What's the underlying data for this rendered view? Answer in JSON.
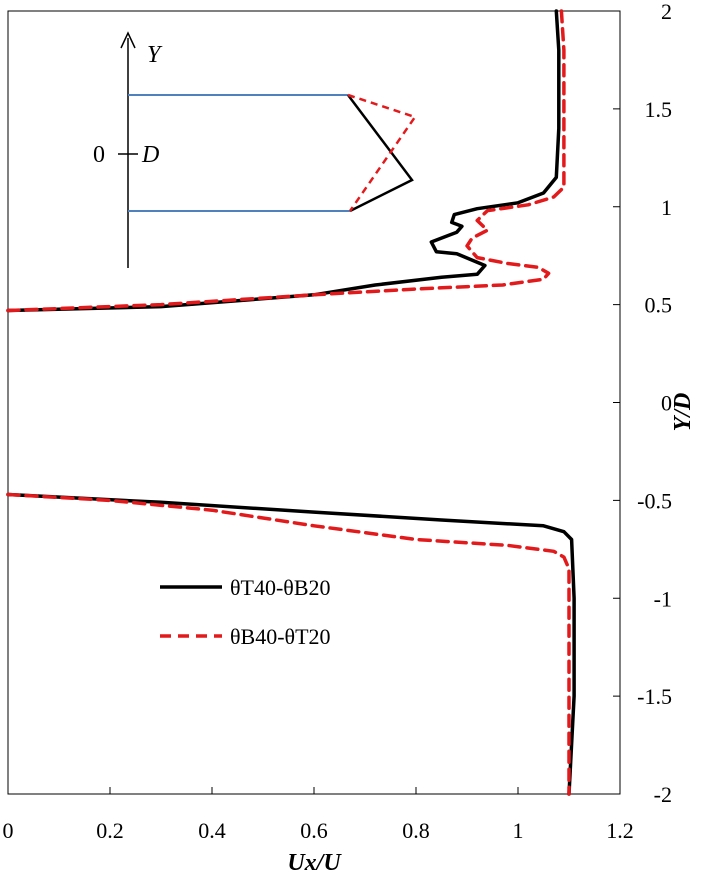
{
  "chart_data": {
    "type": "line",
    "title": "",
    "xlabel": "Ux/U",
    "ylabel": "Y/D",
    "xlim": [
      0,
      1.2
    ],
    "ylim": [
      -2,
      2
    ],
    "x_ticks": [
      "0",
      "0.2",
      "0.4",
      "0.6",
      "0.8",
      "1",
      "1.2"
    ],
    "y_ticks": [
      "-2",
      "-1.5",
      "-1",
      "-0.5",
      "0",
      "0.5",
      "1",
      "1.5",
      "2"
    ],
    "grid": false,
    "legend_position": "lower-left",
    "series": [
      {
        "name": "θT40-θB20",
        "color": "#000000",
        "style": "solid",
        "segments": [
          [
            [
              0,
              0.47
            ],
            [
              0.3,
              0.49
            ],
            [
              0.6,
              0.55
            ],
            [
              0.72,
              0.6
            ],
            [
              0.85,
              0.64
            ],
            [
              0.92,
              0.655
            ],
            [
              0.935,
              0.7
            ],
            [
              0.88,
              0.76
            ],
            [
              0.84,
              0.77
            ],
            [
              0.83,
              0.82
            ],
            [
              0.86,
              0.85
            ],
            [
              0.88,
              0.87
            ],
            [
              0.89,
              0.9
            ],
            [
              0.87,
              0.92
            ],
            [
              0.875,
              0.96
            ],
            [
              0.92,
              0.99
            ],
            [
              1.0,
              1.02
            ],
            [
              1.05,
              1.07
            ],
            [
              1.075,
              1.15
            ],
            [
              1.08,
              1.4
            ],
            [
              1.08,
              1.8
            ],
            [
              1.075,
              2.0
            ]
          ],
          [
            [
              0,
              -0.47
            ],
            [
              0.3,
              -0.51
            ],
            [
              0.6,
              -0.56
            ],
            [
              0.85,
              -0.6
            ],
            [
              1.05,
              -0.63
            ],
            [
              1.09,
              -0.66
            ],
            [
              1.105,
              -0.7
            ],
            [
              1.11,
              -1.0
            ],
            [
              1.11,
              -1.5
            ],
            [
              1.1,
              -2.0
            ]
          ]
        ]
      },
      {
        "name": "θB40-θT20",
        "color": "#e31a1c",
        "style": "dashed",
        "segments": [
          [
            [
              0,
              0.47
            ],
            [
              0.3,
              0.5
            ],
            [
              0.6,
              0.55
            ],
            [
              0.8,
              0.58
            ],
            [
              0.97,
              0.6
            ],
            [
              1.05,
              0.63
            ],
            [
              1.06,
              0.66
            ],
            [
              1.04,
              0.69
            ],
            [
              0.98,
              0.71
            ],
            [
              0.92,
              0.74
            ],
            [
              0.91,
              0.77
            ],
            [
              0.9,
              0.8
            ],
            [
              0.91,
              0.84
            ],
            [
              0.94,
              0.88
            ],
            [
              0.92,
              0.93
            ],
            [
              0.94,
              0.98
            ],
            [
              1.02,
              1.01
            ],
            [
              1.07,
              1.05
            ],
            [
              1.09,
              1.1
            ],
            [
              1.09,
              1.4
            ],
            [
              1.09,
              1.8
            ],
            [
              1.085,
              2.0
            ]
          ],
          [
            [
              0,
              -0.47
            ],
            [
              0.2,
              -0.5
            ],
            [
              0.4,
              -0.55
            ],
            [
              0.6,
              -0.63
            ],
            [
              0.8,
              -0.7
            ],
            [
              0.98,
              -0.73
            ],
            [
              1.07,
              -0.76
            ],
            [
              1.09,
              -0.79
            ],
            [
              1.1,
              -0.85
            ],
            [
              1.1,
              -1.2
            ],
            [
              1.1,
              -1.7
            ],
            [
              1.1,
              -2.0
            ]
          ]
        ]
      }
    ],
    "inset": {
      "y_label": "Y",
      "d_label": "D",
      "zero_label": "0",
      "colors": {
        "plate": "#4f81bd",
        "black": "#000000",
        "red": "#e31a1c"
      }
    }
  }
}
